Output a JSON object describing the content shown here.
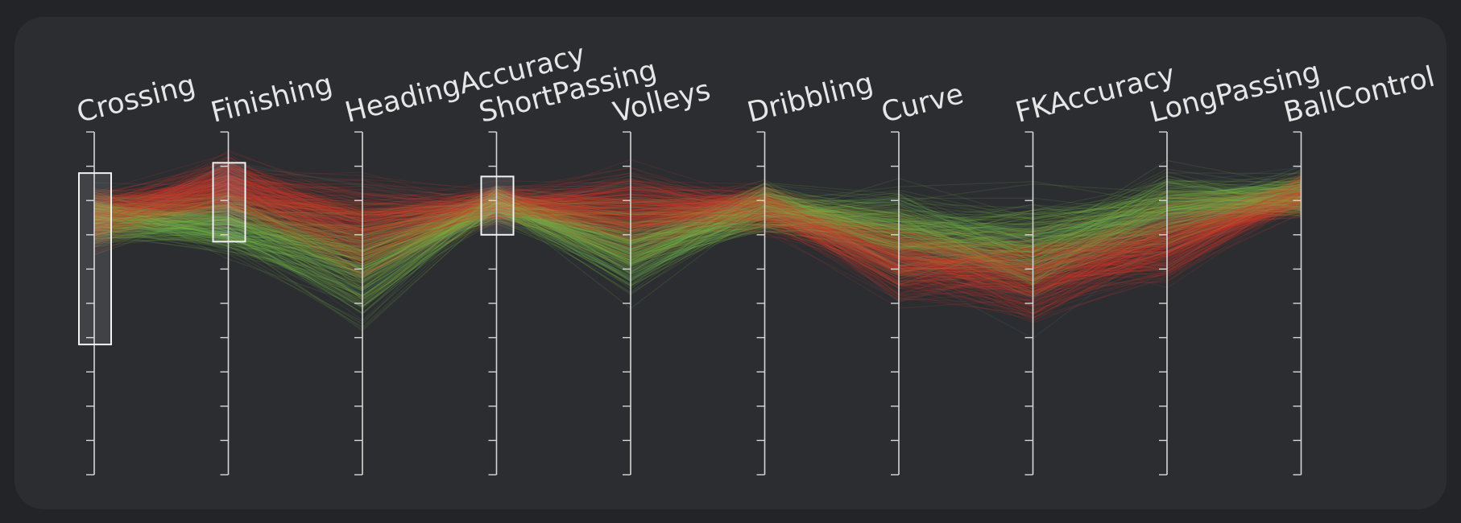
{
  "chart_data": {
    "type": "parallel_coordinates",
    "dimensions": [
      "Crossing",
      "Finishing",
      "HeadingAccuracy",
      "ShortPassing",
      "Volleys",
      "Dribbling",
      "Curve",
      "FKAccuracy",
      "LongPassing",
      "BallControl"
    ],
    "axis_range": [
      0,
      100
    ],
    "tick_count": 10,
    "brushes": [
      {
        "dimension": "Crossing",
        "range": [
          38,
          88
        ]
      },
      {
        "dimension": "Finishing",
        "range": [
          68,
          91
        ]
      },
      {
        "dimension": "ShortPassing",
        "range": [
          70,
          87
        ]
      }
    ],
    "line_count": 600,
    "color_encoding": "red = high finishing, green = low finishing",
    "colors": {
      "high": "#d23b2c",
      "low": "#7bbf4a",
      "mid": "#b58a3a",
      "alt": "#4f8a8a"
    }
  }
}
